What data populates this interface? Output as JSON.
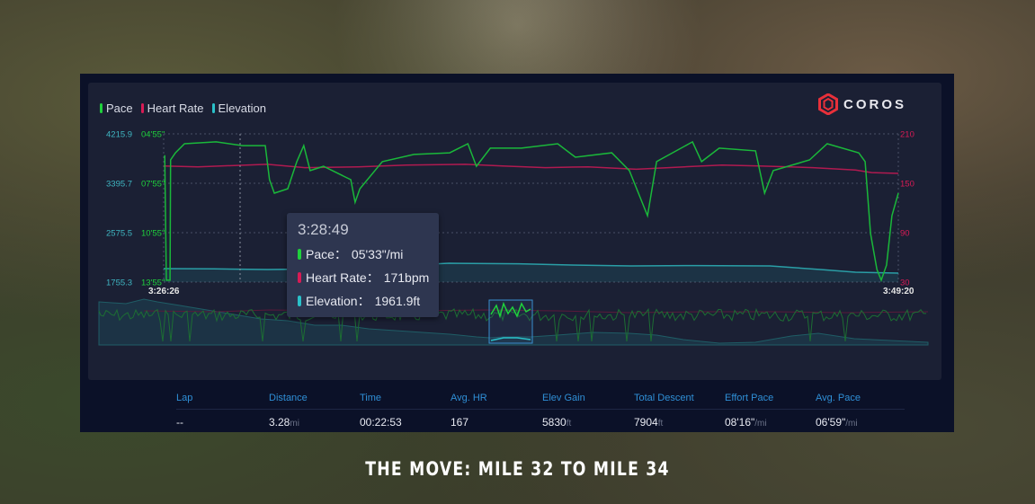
{
  "legend": [
    {
      "label": "Pace",
      "color": "#1fd13c"
    },
    {
      "label": "Heart Rate",
      "color": "#d81b55"
    },
    {
      "label": "Elevation",
      "color": "#2ac1c9"
    }
  ],
  "logo": {
    "text": "COROS",
    "color": "#e8303a"
  },
  "chart_data": {
    "type": "line",
    "x_range": [
      "3:26:26",
      "3:49:20"
    ],
    "x_tick_labels": [
      "3:26:26",
      "3:49:20"
    ],
    "axes": {
      "elevation": {
        "ticks": [
          "4215.9",
          "3395.7",
          "2575.5",
          "1755.3"
        ],
        "range": [
          1755.3,
          4215.9
        ],
        "unit": "ft"
      },
      "pace": {
        "ticks": [
          "04'55\"",
          "07'55\"",
          "10'55\"",
          "13'55\""
        ],
        "range": [
          "04'55",
          "13'55"
        ],
        "inverted": true
      },
      "heart_rate": {
        "ticks": [
          "210",
          "150",
          "90",
          "30"
        ],
        "range": [
          30,
          210
        ]
      }
    },
    "grid": true,
    "legend_placement": "top-left",
    "series": [
      {
        "name": "Pace",
        "color": "#1fd13c",
        "points": [
          [
            "3:26:28",
            "06'13"
          ],
          [
            "3:26:31",
            "13'48"
          ],
          [
            "3:26:38",
            "13'48"
          ],
          [
            "3:26:39",
            "06'30"
          ],
          [
            "3:26:48",
            "06'04"
          ],
          [
            "3:27:05",
            "05'31"
          ],
          [
            "3:28:04",
            "05'24"
          ],
          [
            "3:28:54",
            "05'38"
          ],
          [
            "3:29:36",
            "05'38"
          ],
          [
            "3:29:44",
            "07'42"
          ],
          [
            "3:29:53",
            "08'31"
          ],
          [
            "3:30:18",
            "08'15"
          ],
          [
            "3:30:35",
            "06'36"
          ],
          [
            "3:30:48",
            "05'38"
          ],
          [
            "3:31:00",
            "07'09"
          ],
          [
            "3:31:25",
            "06'53"
          ],
          [
            "3:32:16",
            "07'42"
          ],
          [
            "3:32:24",
            "09'04"
          ],
          [
            "3:32:33",
            "08'15"
          ],
          [
            "3:33:15",
            "06'36"
          ],
          [
            "3:34:14",
            "06'10"
          ],
          [
            "3:35:21",
            "06'04"
          ],
          [
            "3:35:55",
            "05'31"
          ],
          [
            "3:36:11",
            "06'53"
          ],
          [
            "3:36:37",
            "05'47"
          ],
          [
            "3:37:35",
            "05'47"
          ],
          [
            "3:38:43",
            "05'31"
          ],
          [
            "3:39:16",
            "06'20"
          ],
          [
            "3:40:24",
            "06'04"
          ],
          [
            "3:40:57",
            "07'09"
          ],
          [
            "3:41:31",
            "09'53"
          ],
          [
            "3:41:48",
            "06'36"
          ],
          [
            "3:42:55",
            "05'24"
          ],
          [
            "3:43:12",
            "06'36"
          ],
          [
            "3:43:45",
            "05'47"
          ],
          [
            "3:44:53",
            "05'57"
          ],
          [
            "3:45:10",
            "08'31"
          ],
          [
            "3:45:26",
            "07'09"
          ],
          [
            "3:46:34",
            "06'30"
          ],
          [
            "3:47:07",
            "05'31"
          ],
          [
            "3:48:06",
            "06'04"
          ],
          [
            "3:48:18",
            "06'36"
          ],
          [
            "3:48:28",
            "10'58"
          ],
          [
            "3:48:40",
            "13'09"
          ],
          [
            "3:48:48",
            "13'48"
          ],
          [
            "3:48:58",
            "12'53"
          ],
          [
            "3:49:08",
            "09'53"
          ],
          [
            "3:49:20",
            "08'31"
          ]
        ]
      },
      {
        "name": "Heart Rate",
        "color": "#d81b55",
        "points": [
          [
            "3:26:26",
            171
          ],
          [
            "3:27:30",
            170
          ],
          [
            "3:29:40",
            173
          ],
          [
            "3:30:50",
            169
          ],
          [
            "3:32:30",
            170
          ],
          [
            "3:34:00",
            172
          ],
          [
            "3:35:50",
            173
          ],
          [
            "3:37:00",
            171
          ],
          [
            "3:38:20",
            169
          ],
          [
            "3:39:40",
            170
          ],
          [
            "3:41:10",
            167
          ],
          [
            "3:42:40",
            170
          ],
          [
            "3:43:50",
            172
          ],
          [
            "3:45:00",
            171
          ],
          [
            "3:46:40",
            169
          ],
          [
            "3:48:00",
            166
          ],
          [
            "3:48:30",
            163
          ],
          [
            "3:49:20",
            162
          ]
        ]
      },
      {
        "name": "Elevation",
        "color": "#2ac1c9",
        "points": [
          [
            "3:26:26",
            1979
          ],
          [
            "3:28:00",
            1975
          ],
          [
            "3:29:40",
            1964
          ],
          [
            "3:31:00",
            1972
          ],
          [
            "3:33:00",
            2010
          ],
          [
            "3:35:20",
            2069
          ],
          [
            "3:37:30",
            2060
          ],
          [
            "3:39:00",
            2040
          ],
          [
            "3:41:00",
            2024
          ],
          [
            "3:43:00",
            2030
          ],
          [
            "3:45:20",
            2024
          ],
          [
            "3:47:00",
            1960
          ],
          [
            "3:48:00",
            1920
          ],
          [
            "3:49:20",
            1904
          ]
        ]
      }
    ]
  },
  "tooltip": {
    "time": "3:28:49",
    "rows": [
      {
        "label": "Pace：",
        "value": "05'33\"/mi",
        "color": "#1fd13c"
      },
      {
        "label": "Heart Rate：",
        "value": "171bpm",
        "color": "#d81b55"
      },
      {
        "label": "Elevation：",
        "value": "1961.9ft",
        "color": "#2ac1c9"
      }
    ]
  },
  "stats": {
    "headers": [
      "Lap",
      "Distance",
      "Time",
      "Avg. HR",
      "Elev Gain",
      "Total Descent",
      "Effort Pace",
      "Avg. Pace"
    ],
    "values": [
      {
        "v": "--",
        "u": ""
      },
      {
        "v": "3.28",
        "u": "mi"
      },
      {
        "v": "00:22:53",
        "u": ""
      },
      {
        "v": "167",
        "u": ""
      },
      {
        "v": "5830",
        "u": "ft"
      },
      {
        "v": "7904",
        "u": "ft"
      },
      {
        "v": "08'16\"",
        "u": "/mi"
      },
      {
        "v": "06'59\"",
        "u": "/mi"
      }
    ]
  },
  "caption": "THE MOVE: MILE 32 TO MILE 34"
}
